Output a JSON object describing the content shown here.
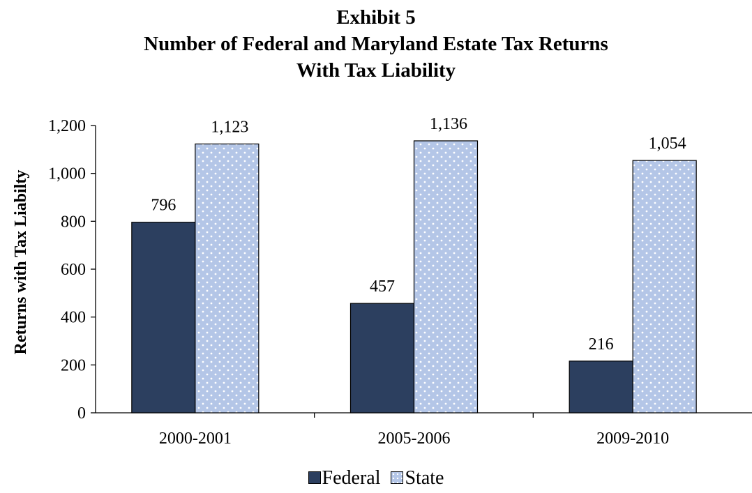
{
  "title_lines": [
    "Exhibit 5",
    "Number of Federal and Maryland Estate Tax Returns",
    "With Tax Liability"
  ],
  "legend": [
    {
      "label": "Federal",
      "color": "#2c3f5f",
      "pattern": "solid"
    },
    {
      "label": "State",
      "color": "#b4c6e7",
      "pattern": "dotted"
    }
  ],
  "chart_data": {
    "type": "bar",
    "title": "Exhibit 5 Number of Federal and Maryland Estate Tax Returns With Tax Liability",
    "categories": [
      "2000-2001",
      "2005-2006",
      "2009-2010"
    ],
    "series": [
      {
        "name": "Federal",
        "values": [
          796,
          457,
          216
        ],
        "labels": [
          "796",
          "457",
          "216"
        ],
        "color": "#2c3f5f"
      },
      {
        "name": "State",
        "values": [
          1123,
          1136,
          1054
        ],
        "labels": [
          "1,123",
          "1,136",
          "1,054"
        ],
        "color": "#b4c6e7"
      }
    ],
    "xlabel": "",
    "ylabel": "Returns with Tax Liabilty",
    "ylim": [
      0,
      1200
    ],
    "yticks": [
      0,
      200,
      400,
      600,
      800,
      1000,
      1200
    ],
    "ytick_labels": [
      "0",
      "200",
      "400",
      "600",
      "800",
      "1,000",
      "1,200"
    ],
    "grid": false,
    "legend_position": "bottom"
  }
}
